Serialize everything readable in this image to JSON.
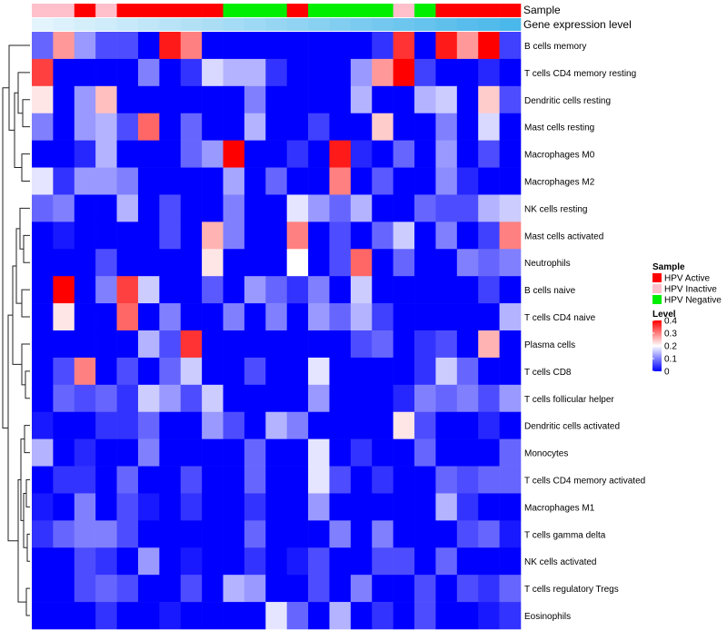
{
  "chart_data": {
    "type": "heatmap",
    "title": "",
    "annotation_tracks": [
      {
        "name": "Sample",
        "label": "Sample"
      },
      {
        "name": "Gene expression level",
        "label": "Gene expression level"
      }
    ],
    "sample_groups": [
      "HPV Inactive",
      "HPV Inactive",
      "HPV Active",
      "HPV Inactive",
      "HPV Active",
      "HPV Active",
      "HPV Active",
      "HPV Active",
      "HPV Active",
      "HPV Negative",
      "HPV Negative",
      "HPV Negative",
      "HPV Active",
      "HPV Negative",
      "HPV Negative",
      "HPV Negative",
      "HPV Negative",
      "HPV Inactive",
      "HPV Negative",
      "HPV Active",
      "HPV Active",
      "HPV Active",
      "HPV Active"
    ],
    "expression_levels": [
      0.02,
      0.04,
      0.06,
      0.08,
      0.1,
      0.12,
      0.14,
      0.16,
      0.18,
      0.2,
      0.22,
      0.24,
      0.26,
      0.28,
      0.3,
      0.32,
      0.34,
      0.36,
      0.38,
      0.4,
      0.42,
      0.44,
      0.46
    ],
    "expression_colors": [
      "#e3f4fc",
      "#4ab8ea"
    ],
    "rows": [
      "B cells memory",
      "T cells CD4 memory resting",
      "Dendritic cells resting",
      "Mast cells resting",
      "Macrophages M0",
      "Macrophages M2",
      "NK cells resting",
      "Mast cells activated",
      "Neutrophils",
      "B cells naive",
      "T cells CD4 naive",
      "Plasma cells",
      "T cells CD8",
      "T cells follicular helper",
      "Dendritic cells activated",
      "Monocytes",
      "T cells CD4 memory activated",
      "Macrophages M1",
      "T cells gamma delta",
      "NK cells activated",
      "T cells regulatory  Tregs",
      "Eosinophils"
    ],
    "values": [
      [
        0.08,
        0.28,
        0.12,
        0.06,
        0.06,
        0.0,
        0.38,
        0.3,
        0.0,
        0.0,
        0.0,
        0.0,
        0.0,
        0.0,
        0.0,
        0.0,
        0.04,
        0.36,
        0.0,
        0.38,
        0.28,
        0.4,
        0.05
      ],
      [
        0.35,
        0.0,
        0.0,
        0.0,
        0.0,
        0.1,
        0.0,
        0.04,
        0.17,
        0.14,
        0.14,
        0.04,
        0.0,
        0.0,
        0.0,
        0.12,
        0.28,
        0.4,
        0.05,
        0.0,
        0.0,
        0.03,
        0.0
      ],
      [
        0.22,
        0.0,
        0.12,
        0.25,
        0.0,
        0.0,
        0.0,
        0.0,
        0.0,
        0.0,
        0.1,
        0.0,
        0.0,
        0.0,
        0.0,
        0.14,
        0.0,
        0.0,
        0.14,
        0.16,
        0.0,
        0.24,
        0.06
      ],
      [
        0.1,
        0.0,
        0.12,
        0.14,
        0.06,
        0.32,
        0.0,
        0.08,
        0.0,
        0.0,
        0.14,
        0.0,
        0.0,
        0.05,
        0.0,
        0.0,
        0.24,
        0.0,
        0.0,
        0.1,
        0.0,
        0.17,
        0.0
      ],
      [
        0.0,
        0.0,
        0.03,
        0.14,
        0.0,
        0.0,
        0.0,
        0.08,
        0.12,
        0.4,
        0.0,
        0.0,
        0.04,
        0.0,
        0.38,
        0.03,
        0.0,
        0.08,
        0.0,
        0.12,
        0.0,
        0.06,
        0.0
      ],
      [
        0.18,
        0.04,
        0.12,
        0.12,
        0.1,
        0.0,
        0.0,
        0.0,
        0.0,
        0.13,
        0.0,
        0.08,
        0.0,
        0.0,
        0.3,
        0.0,
        0.07,
        0.0,
        0.0,
        0.11,
        0.03,
        0.0,
        0.0
      ],
      [
        0.08,
        0.1,
        0.0,
        0.0,
        0.14,
        0.0,
        0.06,
        0.0,
        0.0,
        0.1,
        0.0,
        0.0,
        0.18,
        0.12,
        0.08,
        0.14,
        0.0,
        0.0,
        0.08,
        0.06,
        0.06,
        0.14,
        0.16
      ],
      [
        0.0,
        0.02,
        0.0,
        0.0,
        0.0,
        0.0,
        0.06,
        0.0,
        0.26,
        0.1,
        0.0,
        0.0,
        0.3,
        0.0,
        0.06,
        0.0,
        0.08,
        0.16,
        0.0,
        0.1,
        0.0,
        0.05,
        0.3
      ],
      [
        0.0,
        0.0,
        0.0,
        0.06,
        0.0,
        0.0,
        0.0,
        0.0,
        0.22,
        0.0,
        0.0,
        0.0,
        0.2,
        0.0,
        0.06,
        0.32,
        0.0,
        0.08,
        0.0,
        0.0,
        0.1,
        0.08,
        0.1
      ],
      [
        0.0,
        0.4,
        0.0,
        0.1,
        0.35,
        0.16,
        0.0,
        0.0,
        0.07,
        0.0,
        0.12,
        0.08,
        0.04,
        0.1,
        0.0,
        0.16,
        0.0,
        0.0,
        0.0,
        0.0,
        0.0,
        0.05,
        0.0
      ],
      [
        0.0,
        0.22,
        0.0,
        0.0,
        0.32,
        0.0,
        0.1,
        0.0,
        0.0,
        0.1,
        0.0,
        0.1,
        0.0,
        0.12,
        0.08,
        0.14,
        0.05,
        0.0,
        0.0,
        0.0,
        0.0,
        0.0,
        0.14
      ],
      [
        0.0,
        0.0,
        0.0,
        0.0,
        0.0,
        0.14,
        0.06,
        0.36,
        0.0,
        0.0,
        0.0,
        0.0,
        0.0,
        0.0,
        0.0,
        0.06,
        0.08,
        0.0,
        0.04,
        0.06,
        0.0,
        0.26,
        0.0
      ],
      [
        0.0,
        0.06,
        0.3,
        0.0,
        0.06,
        0.0,
        0.08,
        0.16,
        0.0,
        0.0,
        0.06,
        0.0,
        0.0,
        0.18,
        0.0,
        0.0,
        0.0,
        0.0,
        0.04,
        0.16,
        0.08,
        0.0,
        0.0
      ],
      [
        0.0,
        0.08,
        0.06,
        0.08,
        0.04,
        0.16,
        0.12,
        0.06,
        0.16,
        0.0,
        0.0,
        0.0,
        0.0,
        0.12,
        0.0,
        0.0,
        0.0,
        0.03,
        0.1,
        0.08,
        0.1,
        0.06,
        0.12
      ],
      [
        0.02,
        0.0,
        0.0,
        0.04,
        0.04,
        0.08,
        0.0,
        0.0,
        0.12,
        0.06,
        0.0,
        0.14,
        0.1,
        0.0,
        0.0,
        0.0,
        0.0,
        0.22,
        0.06,
        0.0,
        0.0,
        0.03,
        0.0
      ],
      [
        0.14,
        0.0,
        0.03,
        0.0,
        0.0,
        0.1,
        0.0,
        0.0,
        0.0,
        0.0,
        0.08,
        0.0,
        0.0,
        0.18,
        0.0,
        0.04,
        0.0,
        0.0,
        0.08,
        0.0,
        0.0,
        0.0,
        0.08
      ],
      [
        0.0,
        0.04,
        0.04,
        0.0,
        0.08,
        0.0,
        0.0,
        0.06,
        0.0,
        0.0,
        0.08,
        0.0,
        0.0,
        0.18,
        0.06,
        0.0,
        0.04,
        0.0,
        0.0,
        0.08,
        0.06,
        0.08,
        0.08
      ],
      [
        0.02,
        0.0,
        0.1,
        0.0,
        0.06,
        0.02,
        0.0,
        0.04,
        0.0,
        0.0,
        0.04,
        0.0,
        0.0,
        0.12,
        0.0,
        0.0,
        0.0,
        0.0,
        0.0,
        0.14,
        0.04,
        0.0,
        0.0
      ],
      [
        0.04,
        0.08,
        0.1,
        0.1,
        0.06,
        0.0,
        0.0,
        0.0,
        0.0,
        0.0,
        0.08,
        0.0,
        0.0,
        0.0,
        0.1,
        0.0,
        0.1,
        0.0,
        0.0,
        0.0,
        0.06,
        0.08,
        0.02
      ],
      [
        0.0,
        0.0,
        0.06,
        0.04,
        0.0,
        0.12,
        0.0,
        0.02,
        0.0,
        0.0,
        0.04,
        0.0,
        0.02,
        0.06,
        0.0,
        0.0,
        0.06,
        0.06,
        0.0,
        0.08,
        0.0,
        0.0,
        0.0
      ],
      [
        0.0,
        0.0,
        0.06,
        0.08,
        0.06,
        0.0,
        0.0,
        0.06,
        0.0,
        0.14,
        0.12,
        0.0,
        0.0,
        0.06,
        0.0,
        0.1,
        0.0,
        0.0,
        0.06,
        0.0,
        0.06,
        0.04,
        0.08
      ],
      [
        0.0,
        0.0,
        0.0,
        0.04,
        0.0,
        0.0,
        0.02,
        0.0,
        0.0,
        0.0,
        0.0,
        0.18,
        0.08,
        0.0,
        0.14,
        0.0,
        0.04,
        0.0,
        0.06,
        0.0,
        0.0,
        0.02,
        0.04
      ]
    ],
    "legends": {
      "sample": {
        "title": "Sample",
        "entries": [
          {
            "label": "HPV Active",
            "color": "#ff0000"
          },
          {
            "label": "HPV Inactive",
            "color": "#ffc0cb"
          },
          {
            "label": "HPV Negative",
            "color": "#00ee00"
          }
        ]
      },
      "level": {
        "title": "Level",
        "ticks": [
          "0.4",
          "0.3",
          "0.2",
          "0.1",
          "0"
        ],
        "tick_values": [
          0.4,
          0.3,
          0.2,
          0.1,
          0.0
        ],
        "range": [
          0,
          0.4
        ],
        "color_low": "#0000ff",
        "color_mid": "#ffffff",
        "color_high": "#ff0000"
      }
    },
    "dendrogram": "rows",
    "xlabel": "",
    "ylabel": ""
  }
}
